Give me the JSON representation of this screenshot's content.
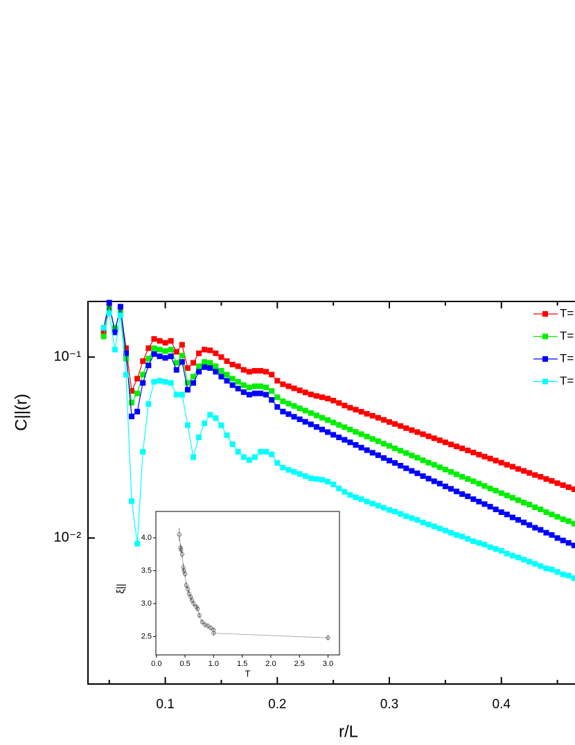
{
  "chart_data": [
    {
      "type": "line",
      "log_y": true,
      "x_label": "r/L",
      "y_label": "C||(r)",
      "x": [
        0.045,
        0.05,
        0.055,
        0.06,
        0.065,
        0.07,
        0.075,
        0.08,
        0.085,
        0.09,
        0.095,
        0.1,
        0.105,
        0.11,
        0.115,
        0.12,
        0.125,
        0.13,
        0.135,
        0.14,
        0.145,
        0.15,
        0.155,
        0.16,
        0.165,
        0.17,
        0.175,
        0.18,
        0.185,
        0.19,
        0.195,
        0.2,
        0.205,
        0.21,
        0.215,
        0.22,
        0.225,
        0.23,
        0.235,
        0.24,
        0.245,
        0.25,
        0.255,
        0.26,
        0.265,
        0.27,
        0.275,
        0.28,
        0.285,
        0.29,
        0.295,
        0.3,
        0.305,
        0.31,
        0.315,
        0.32,
        0.325,
        0.33,
        0.335,
        0.34,
        0.345,
        0.35,
        0.355,
        0.36,
        0.365,
        0.37,
        0.375,
        0.38,
        0.385,
        0.39,
        0.395,
        0.4,
        0.405,
        0.41,
        0.415,
        0.42,
        0.425,
        0.43,
        0.435,
        0.44,
        0.445,
        0.45,
        0.455,
        0.46,
        0.465
      ],
      "series": [
        {
          "name": "T=",
          "color": "#ff0000",
          "values": [
            0.138,
            0.19,
            0.141,
            0.186,
            0.112,
            0.065,
            0.076,
            0.095,
            0.112,
            0.126,
            0.123,
            0.12,
            0.123,
            0.107,
            0.117,
            0.087,
            0.093,
            0.105,
            0.11,
            0.109,
            0.105,
            0.1,
            0.095,
            0.091,
            0.089,
            0.085,
            0.083,
            0.084,
            0.084,
            0.083,
            0.08,
            0.074,
            0.0708,
            0.069,
            0.0672,
            0.0655,
            0.0638,
            0.0622,
            0.061,
            0.06,
            0.059,
            0.0575,
            0.0558,
            0.054,
            0.0525,
            0.0512,
            0.0499,
            0.0486,
            0.0474,
            0.0462,
            0.045,
            0.0438,
            0.0427,
            0.0416,
            0.0405,
            0.0395,
            0.0385,
            0.0375,
            0.0365,
            0.0356,
            0.0347,
            0.0338,
            0.0329,
            0.0321,
            0.0313,
            0.0305,
            0.0297,
            0.0289,
            0.0282,
            0.0275,
            0.0268,
            0.0261,
            0.0254,
            0.0248,
            0.0241,
            0.0235,
            0.0229,
            0.0223,
            0.0218,
            0.0212,
            0.0207,
            0.0201,
            0.0196,
            0.0191,
            0.0186
          ]
        },
        {
          "name": "T=",
          "color": "#00ee00",
          "values": [
            0.13,
            0.185,
            0.145,
            0.18,
            0.098,
            0.056,
            0.063,
            0.08,
            0.098,
            0.112,
            0.11,
            0.108,
            0.11,
            0.093,
            0.102,
            0.072,
            0.078,
            0.089,
            0.094,
            0.093,
            0.089,
            0.084,
            0.08,
            0.076,
            0.073,
            0.07,
            0.068,
            0.069,
            0.069,
            0.068,
            0.065,
            0.06,
            0.057,
            0.0553,
            0.0537,
            0.0521,
            0.0506,
            0.0491,
            0.0476,
            0.0462,
            0.0449,
            0.0435,
            0.0422,
            0.041,
            0.0398,
            0.0386,
            0.0375,
            0.0364,
            0.0353,
            0.0343,
            0.0332,
            0.0323,
            0.0313,
            0.0304,
            0.0295,
            0.0286,
            0.0278,
            0.0269,
            0.0261,
            0.0254,
            0.0246,
            0.0239,
            0.0232,
            0.0225,
            0.0218,
            0.0212,
            0.0206,
            0.02,
            0.0194,
            0.0188,
            0.0183,
            0.0177,
            0.0172,
            0.0167,
            0.0162,
            0.0157,
            0.0153,
            0.0148,
            0.0144,
            0.0139,
            0.0135,
            0.0131,
            0.0127,
            0.0124,
            0.012
          ]
        },
        {
          "name": "T=",
          "color": "#0000ff",
          "values": [
            0.145,
            0.2,
            0.137,
            0.19,
            0.105,
            0.047,
            0.05,
            0.072,
            0.09,
            0.104,
            0.101,
            0.099,
            0.101,
            0.085,
            0.094,
            0.066,
            0.072,
            0.083,
            0.088,
            0.087,
            0.083,
            0.078,
            0.074,
            0.07,
            0.067,
            0.064,
            0.062,
            0.063,
            0.063,
            0.062,
            0.058,
            0.053,
            0.05,
            0.0484,
            0.0468,
            0.0453,
            0.0439,
            0.0425,
            0.0411,
            0.0398,
            0.0385,
            0.0372,
            0.036,
            0.0349,
            0.0338,
            0.0327,
            0.0316,
            0.0306,
            0.0296,
            0.0287,
            0.0277,
            0.0268,
            0.026,
            0.0251,
            0.0243,
            0.0235,
            0.0228,
            0.022,
            0.0213,
            0.0206,
            0.02,
            0.0193,
            0.0187,
            0.0181,
            0.0175,
            0.017,
            0.0164,
            0.0159,
            0.0154,
            0.0149,
            0.0144,
            0.0139,
            0.0135,
            0.013,
            0.0126,
            0.0122,
            0.0118,
            0.0114,
            0.0111,
            0.0107,
            0.0104,
            0.01,
            0.0097,
            0.0094,
            0.0091
          ]
        },
        {
          "name": "T=",
          "color": "#00ffff",
          "values": [
            0.145,
            0.175,
            0.11,
            0.17,
            0.08,
            0.016,
            0.0093,
            0.03,
            0.055,
            0.073,
            0.074,
            0.073,
            0.072,
            0.062,
            0.062,
            0.042,
            0.028,
            0.036,
            0.043,
            0.048,
            0.046,
            0.042,
            0.037,
            0.033,
            0.03,
            0.028,
            0.027,
            0.028,
            0.03,
            0.03,
            0.029,
            0.026,
            0.0245,
            0.0238,
            0.0232,
            0.0226,
            0.022,
            0.0214,
            0.0212,
            0.021,
            0.0205,
            0.0198,
            0.0188,
            0.018,
            0.0173,
            0.0168,
            0.0164,
            0.0159,
            0.0155,
            0.0151,
            0.0147,
            0.0143,
            0.014,
            0.0136,
            0.0132,
            0.0129,
            0.0126,
            0.0122,
            0.0119,
            0.0116,
            0.0113,
            0.011,
            0.0107,
            0.0104,
            0.0102,
            0.0099,
            0.0096,
            0.0094,
            0.0092,
            0.0089,
            0.0087,
            0.0085,
            0.0082,
            0.008,
            0.0078,
            0.0076,
            0.0074,
            0.0072,
            0.007,
            0.0068,
            0.0067,
            0.0065,
            0.0063,
            0.0062,
            0.006
          ]
        }
      ],
      "xlim": [
        0.031,
        0.4688
      ],
      "xticks": [
        0.1,
        0.2,
        0.3,
        0.4
      ],
      "xminorticks": [
        0.05,
        0.15,
        0.25,
        0.35,
        0.45
      ],
      "ylim": [
        0.00156,
        0.203
      ],
      "yticks": [
        {
          "value": 0.1,
          "label": "10⁻¹"
        },
        {
          "value": 0.01,
          "label": "10⁻²"
        }
      ],
      "legend": "upper right"
    },
    {
      "type": "scatter",
      "x_label": "T",
      "y_label": "ξ||",
      "color": "#555555",
      "x": [
        0.4,
        0.42,
        0.43,
        0.45,
        0.47,
        0.48,
        0.5,
        0.52,
        0.55,
        0.57,
        0.6,
        0.62,
        0.65,
        0.7,
        0.72,
        0.75,
        0.8,
        0.85,
        0.9,
        0.95,
        1.0,
        1.0,
        3.0
      ],
      "values": [
        4.05,
        3.85,
        3.82,
        3.75,
        3.55,
        3.5,
        3.45,
        3.28,
        3.22,
        3.15,
        3.1,
        3.05,
        3.0,
        2.95,
        2.92,
        2.82,
        2.72,
        2.68,
        2.66,
        2.63,
        2.6,
        2.55,
        2.48
      ],
      "errors": [
        0.1,
        0.06,
        0.06,
        0.06,
        0.06,
        0.05,
        0.05,
        0.05,
        0.05,
        0.05,
        0.05,
        0.05,
        0.05,
        0.04,
        0.04,
        0.04,
        0.04,
        0.04,
        0.04,
        0.04,
        0.04,
        0.04,
        0.04
      ],
      "xlim": [
        -0.01,
        3.2
      ],
      "xticks": [
        {
          "value": 0,
          "label": "0.0"
        },
        0.5,
        {
          "value": 1,
          "label": "1.0"
        },
        1.5,
        {
          "value": 2,
          "label": "2.0"
        },
        2.5,
        {
          "value": 3,
          "label": "3.0"
        }
      ],
      "ylim": [
        2.22,
        4.4
      ],
      "yticks": [
        2.5,
        {
          "value": 3,
          "label": "3.0"
        },
        3.5,
        {
          "value": 4,
          "label": "4.0"
        }
      ]
    }
  ]
}
